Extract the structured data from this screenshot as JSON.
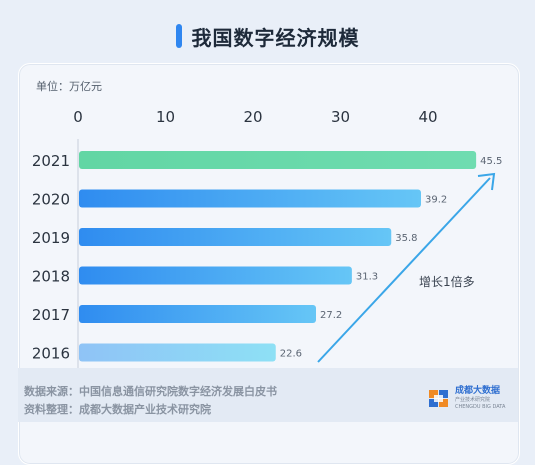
{
  "title": "我国数字经济规模",
  "unit_label": "单位：万亿元",
  "chart_data": {
    "type": "bar",
    "orientation": "horizontal",
    "categories": [
      "2021",
      "2020",
      "2019",
      "2018",
      "2017",
      "2016"
    ],
    "values": [
      45.5,
      39.2,
      35.8,
      31.3,
      27.2,
      22.6
    ],
    "x_ticks": [
      0,
      10,
      20,
      30,
      40
    ],
    "xlim": [
      0,
      48
    ],
    "unit": "万亿元",
    "annotation": "增长1倍多",
    "colors": {
      "first_bar": [
        "#62d6a4",
        "#6fdcb0"
      ],
      "other_bars": [
        "#2f8cf0",
        "#66c6f6"
      ],
      "last_bar": [
        "#8fc3f6",
        "#8ee0f5"
      ],
      "arrow": "#3aa6e8"
    }
  },
  "footer": {
    "source": "数据来源：中国信息通信研究院数字经济发展白皮书",
    "compiler": "资料整理：成都大数据产业技术研究院"
  },
  "logo": {
    "name": "成都大数据",
    "subtitle": "产业技术研究院",
    "tagline": "CHENGDU BIG DATA"
  }
}
